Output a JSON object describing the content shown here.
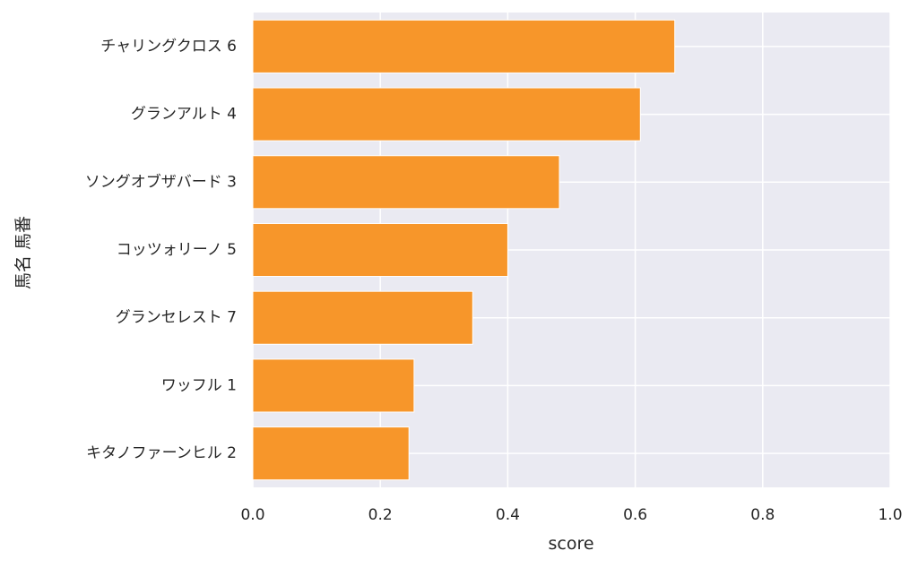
{
  "chart_data": {
    "type": "bar",
    "orientation": "horizontal",
    "categories": [
      "チャリングクロス 6",
      "グランアルト 4",
      "ソングオブザバード 3",
      "コッツォリーノ 5",
      "グランセレスト 7",
      "ワッフル 1",
      "キタノファーンヒル 2"
    ],
    "values": [
      0.662,
      0.608,
      0.481,
      0.4,
      0.345,
      0.253,
      0.245
    ],
    "xlabel": "score",
    "ylabel": "馬名 馬番",
    "xlim": [
      0.0,
      1.0
    ],
    "xticks": [
      "0.0",
      "0.2",
      "0.4",
      "0.6",
      "0.8",
      "1.0"
    ],
    "grid": true,
    "colors": {
      "bar": "#f7962a",
      "background": "#eaeaf2",
      "grid": "#ffffff"
    }
  }
}
